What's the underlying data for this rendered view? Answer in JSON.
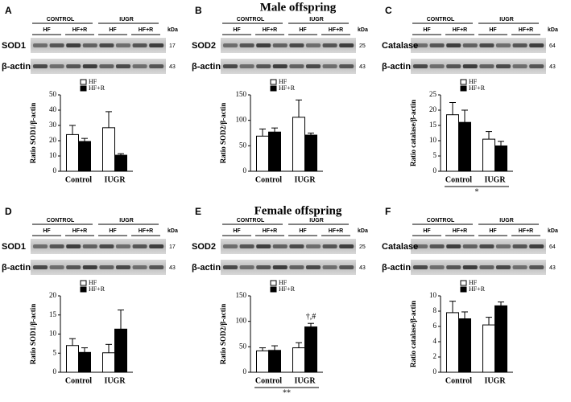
{
  "sections": [
    "Male offspring",
    "Female offspring"
  ],
  "chart_data": [
    {
      "type": "bar",
      "panel": "A",
      "ylabel": "Ratio SOD1/β-actin",
      "categories": [
        "Control",
        "IUGR"
      ],
      "series": [
        {
          "name": "HF",
          "color": "#ffffff",
          "values": [
            24,
            28.5
          ],
          "errors": [
            6,
            10.5
          ]
        },
        {
          "name": "HF+R",
          "color": "#000000",
          "values": [
            19.5,
            10.5
          ],
          "errors": [
            2,
            1
          ]
        }
      ],
      "ylim": [
        0,
        50
      ],
      "yticks": [
        0,
        10,
        20,
        30,
        40,
        50
      ],
      "blot": {
        "groups": [
          "CONTROL",
          "IUGR"
        ],
        "lanes": [
          "HF",
          "HF+R",
          "HF",
          "HF+R"
        ],
        "unit": "kDa",
        "rows": [
          {
            "label": "SOD1",
            "kda": 17
          },
          {
            "label": "β-actin",
            "kda": 43
          }
        ]
      }
    },
    {
      "type": "bar",
      "panel": "B",
      "ylabel": "Ratio SOD2/β-actin",
      "categories": [
        "Control",
        "IUGR"
      ],
      "series": [
        {
          "name": "HF",
          "color": "#ffffff",
          "values": [
            69,
            106
          ],
          "errors": [
            14,
            34
          ]
        },
        {
          "name": "HF+R",
          "color": "#000000",
          "values": [
            77,
            71
          ],
          "errors": [
            8,
            4
          ]
        }
      ],
      "ylim": [
        0,
        150
      ],
      "yticks": [
        0,
        50,
        100,
        150
      ],
      "blot": {
        "groups": [
          "CONTROL",
          "IUGR"
        ],
        "lanes": [
          "HF",
          "HF+R",
          "HF",
          "HF+R"
        ],
        "unit": "kDa",
        "rows": [
          {
            "label": "SOD2",
            "kda": 25
          },
          {
            "label": "β-actin",
            "kda": 43
          }
        ]
      }
    },
    {
      "type": "bar",
      "panel": "C",
      "ylabel": "Ratio catalase/β-actin",
      "categories": [
        "Control",
        "IUGR"
      ],
      "series": [
        {
          "name": "HF",
          "color": "#ffffff",
          "values": [
            18.5,
            10.5
          ],
          "errors": [
            4,
            2.5
          ]
        },
        {
          "name": "HF+R",
          "color": "#000000",
          "values": [
            16,
            8.3
          ],
          "errors": [
            4,
            1.5
          ]
        }
      ],
      "ylim": [
        0,
        25
      ],
      "yticks": [
        0,
        5,
        10,
        15,
        20,
        25
      ],
      "footnote": "*",
      "blot": {
        "groups": [
          "CONTROL",
          "IUGR"
        ],
        "lanes": [
          "HF",
          "HF+R",
          "HF",
          "HF+R"
        ],
        "unit": "kDa",
        "rows": [
          {
            "label": "Catalase",
            "kda": 64
          },
          {
            "label": "β-actin",
            "kda": 43
          }
        ]
      }
    },
    {
      "type": "bar",
      "panel": "D",
      "ylabel": "Ratio SOD1/β-actin",
      "categories": [
        "Control",
        "IUGR"
      ],
      "series": [
        {
          "name": "HF",
          "color": "#ffffff",
          "values": [
            7,
            5.1
          ],
          "errors": [
            1.8,
            2.2
          ]
        },
        {
          "name": "HF+R",
          "color": "#000000",
          "values": [
            5.2,
            11.3
          ],
          "errors": [
            1.2,
            5
          ]
        }
      ],
      "ylim": [
        0,
        20
      ],
      "yticks": [
        0,
        5,
        10,
        15,
        20
      ],
      "blot": {
        "groups": [
          "CONTROL",
          "IUGR"
        ],
        "lanes": [
          "HF",
          "HF+R",
          "HF",
          "HF+R"
        ],
        "unit": "kDa",
        "rows": [
          {
            "label": "SOD1",
            "kda": 17
          },
          {
            "label": "β-actin",
            "kda": 43
          }
        ]
      }
    },
    {
      "type": "bar",
      "panel": "E",
      "ylabel": "Ratio SOD2/β-actin",
      "categories": [
        "Control",
        "IUGR"
      ],
      "series": [
        {
          "name": "HF",
          "color": "#ffffff",
          "values": [
            42,
            48
          ],
          "errors": [
            6,
            10
          ]
        },
        {
          "name": "HF+R",
          "color": "#000000",
          "values": [
            43,
            89
          ],
          "errors": [
            9,
            7
          ],
          "annotations": [
            null,
            "†,#"
          ]
        }
      ],
      "ylim": [
        0,
        150
      ],
      "yticks": [
        0,
        50,
        100,
        150
      ],
      "footnote": "**",
      "blot": {
        "groups": [
          "CONTROL",
          "IUGR"
        ],
        "lanes": [
          "HF",
          "HF+R",
          "HF",
          "HF+R"
        ],
        "unit": "kDa",
        "rows": [
          {
            "label": "SOD2",
            "kda": 25
          },
          {
            "label": "β-actin",
            "kda": 43
          }
        ]
      }
    },
    {
      "type": "bar",
      "panel": "F",
      "ylabel": "Ratio catalase/β-actin",
      "categories": [
        "Control",
        "IUGR"
      ],
      "series": [
        {
          "name": "HF",
          "color": "#ffffff",
          "values": [
            7.8,
            6.2
          ],
          "errors": [
            1.5,
            1
          ]
        },
        {
          "name": "HF+R",
          "color": "#000000",
          "values": [
            7,
            8.7
          ],
          "errors": [
            0.9,
            0.5
          ]
        }
      ],
      "ylim": [
        0,
        10
      ],
      "yticks": [
        0,
        2,
        4,
        6,
        8,
        10
      ],
      "blot": {
        "groups": [
          "CONTROL",
          "IUGR"
        ],
        "lanes": [
          "HF",
          "HF+R",
          "HF",
          "HF+R"
        ],
        "unit": "kDa",
        "rows": [
          {
            "label": "Catalase",
            "kda": 64
          },
          {
            "label": "β-actin",
            "kda": 43
          }
        ]
      }
    }
  ]
}
